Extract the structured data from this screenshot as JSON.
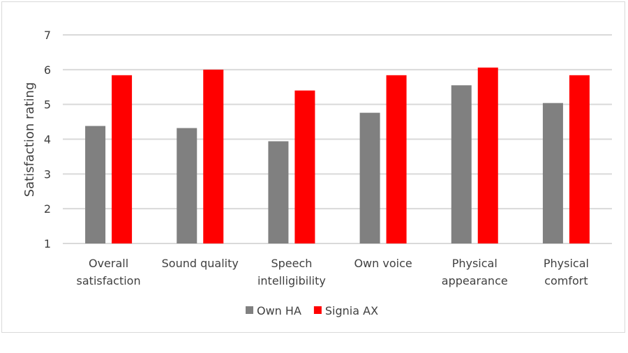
{
  "chart_data": {
    "type": "bar",
    "title": "",
    "xlabel": "",
    "ylabel": "Satisfaction rating",
    "ylim": [
      1,
      7
    ],
    "yticks": [
      1,
      2,
      3,
      4,
      5,
      6,
      7
    ],
    "grid": true,
    "legend_position": "bottom",
    "categories": [
      [
        "Overall",
        "satisfaction"
      ],
      [
        "Sound quality"
      ],
      [
        "Speech",
        "intelligibility"
      ],
      [
        "Own voice"
      ],
      [
        "Physical",
        "appearance"
      ],
      [
        "Physical",
        "comfort"
      ]
    ],
    "series": [
      {
        "name": "Own HA",
        "color": "#808080",
        "values": [
          4.38,
          4.32,
          3.94,
          4.76,
          5.55,
          5.04
        ]
      },
      {
        "name": "Signia AX",
        "color": "#ff0000",
        "values": [
          5.84,
          6.0,
          5.4,
          5.84,
          6.06,
          5.84
        ]
      }
    ]
  }
}
